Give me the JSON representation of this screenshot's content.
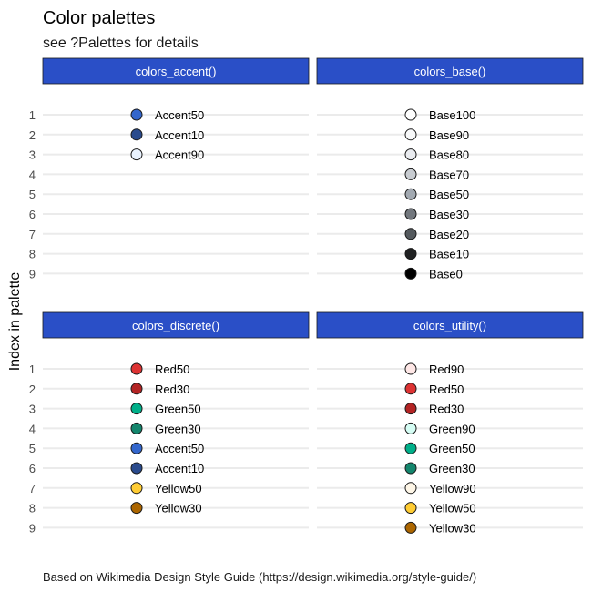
{
  "title": "Color palettes",
  "subtitle": "see ?Palettes for details",
  "caption": "Based on Wikimedia Design Style Guide (https://design.wikimedia.org/style-guide/)",
  "colors": {
    "strip_fill": "#2a4fc7",
    "strip_border": "#1a1a1a",
    "point_border": "#1a1a1a",
    "gridline": "#ebebeb"
  },
  "chart_data": [
    {
      "type": "scatter",
      "facet": "colors_accent()",
      "ylabel": "Index in palette",
      "y_ticks": [
        1,
        2,
        3,
        4,
        5,
        6,
        7,
        8,
        9
      ],
      "ylim": [
        1,
        9
      ],
      "points": [
        {
          "index": 1,
          "label": "Accent50",
          "color": "#3366cc"
        },
        {
          "index": 2,
          "label": "Accent10",
          "color": "#2a4b8d"
        },
        {
          "index": 3,
          "label": "Accent90",
          "color": "#eaf3ff"
        }
      ]
    },
    {
      "type": "scatter",
      "facet": "colors_base()",
      "ylabel": "Index in palette",
      "y_ticks": [
        1,
        2,
        3,
        4,
        5,
        6,
        7,
        8,
        9
      ],
      "ylim": [
        1,
        9
      ],
      "points": [
        {
          "index": 1,
          "label": "Base100",
          "color": "#ffffff"
        },
        {
          "index": 2,
          "label": "Base90",
          "color": "#f8f9fa"
        },
        {
          "index": 3,
          "label": "Base80",
          "color": "#eaecf0"
        },
        {
          "index": 4,
          "label": "Base70",
          "color": "#c8ccd1"
        },
        {
          "index": 5,
          "label": "Base50",
          "color": "#a2a9b1"
        },
        {
          "index": 6,
          "label": "Base30",
          "color": "#72777d"
        },
        {
          "index": 7,
          "label": "Base20",
          "color": "#54595d"
        },
        {
          "index": 8,
          "label": "Base10",
          "color": "#202122"
        },
        {
          "index": 9,
          "label": "Base0",
          "color": "#000000"
        }
      ]
    },
    {
      "type": "scatter",
      "facet": "colors_discrete()",
      "ylabel": "Index in palette",
      "y_ticks": [
        1,
        2,
        3,
        4,
        5,
        6,
        7,
        8,
        9
      ],
      "ylim": [
        1,
        9
      ],
      "points": [
        {
          "index": 1,
          "label": "Red50",
          "color": "#dd3333"
        },
        {
          "index": 2,
          "label": "Red30",
          "color": "#b32424"
        },
        {
          "index": 3,
          "label": "Green50",
          "color": "#00af89"
        },
        {
          "index": 4,
          "label": "Green30",
          "color": "#14866d"
        },
        {
          "index": 5,
          "label": "Accent50",
          "color": "#3366cc"
        },
        {
          "index": 6,
          "label": "Accent10",
          "color": "#2a4b8d"
        },
        {
          "index": 7,
          "label": "Yellow50",
          "color": "#ffcc33"
        },
        {
          "index": 8,
          "label": "Yellow30",
          "color": "#ac6600"
        }
      ]
    },
    {
      "type": "scatter",
      "facet": "colors_utility()",
      "ylabel": "Index in palette",
      "y_ticks": [
        1,
        2,
        3,
        4,
        5,
        6,
        7,
        8,
        9
      ],
      "ylim": [
        1,
        9
      ],
      "points": [
        {
          "index": 1,
          "label": "Red90",
          "color": "#fee7e6"
        },
        {
          "index": 2,
          "label": "Red50",
          "color": "#dd3333"
        },
        {
          "index": 3,
          "label": "Red30",
          "color": "#b32424"
        },
        {
          "index": 4,
          "label": "Green90",
          "color": "#d5fdf4"
        },
        {
          "index": 5,
          "label": "Green50",
          "color": "#00af89"
        },
        {
          "index": 6,
          "label": "Green30",
          "color": "#14866d"
        },
        {
          "index": 7,
          "label": "Yellow90",
          "color": "#fef6e7"
        },
        {
          "index": 8,
          "label": "Yellow50",
          "color": "#ffcc33"
        },
        {
          "index": 9,
          "label": "Yellow30",
          "color": "#ac6600"
        }
      ]
    }
  ]
}
